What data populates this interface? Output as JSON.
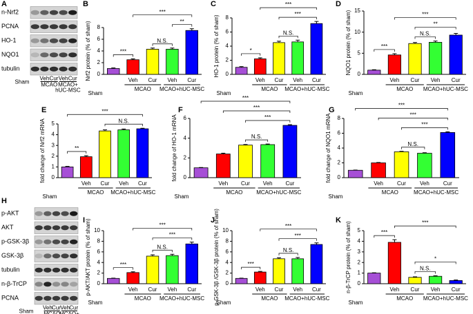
{
  "blots": [
    {
      "panel": "A",
      "rows": [
        "n-Nrf2",
        "PCNA",
        "HO-1",
        "NQO1",
        "tubulin"
      ],
      "lanes": [
        "Sham",
        "Veh",
        "Cur",
        "Veh",
        "Cur"
      ],
      "groups": [
        [
          "MCAO"
        ],
        [
          "MCAO+",
          "hUC-MSC"
        ]
      ]
    },
    {
      "panel": "H",
      "rows": [
        "p-AKT",
        "AKT",
        "p-GSK-3β",
        "GSK-3β",
        "tubulin",
        "n-β-TrCP",
        "PCNA"
      ],
      "lanes": [
        "Sham",
        "Veh",
        "Cur",
        "Veh",
        "Cur"
      ],
      "groups": [
        [
          "MCAO"
        ],
        [
          "MCAO+",
          "hUC-MSC"
        ]
      ]
    }
  ],
  "chart_data": [
    {
      "type": "bar",
      "panel": "B",
      "ylabel": "Nrf2 protein (% of sham)",
      "categories": [
        "Sham",
        "Veh",
        "Cur",
        "Veh",
        "Cur"
      ],
      "groups": [
        "MCAO",
        "MCAO+hUC-MSC"
      ],
      "values": [
        1,
        2.5,
        4.3,
        4.3,
        7.5
      ],
      "errors": [
        0.1,
        0.15,
        0.2,
        0.2,
        0.3
      ],
      "colors": [
        "#a64fd6",
        "#ff0000",
        "#ffff00",
        "#33ff33",
        "#0000ff"
      ],
      "ylim": [
        0,
        8
      ],
      "yticks": [
        0,
        2,
        4,
        6,
        8
      ],
      "brackets": [
        {
          "bars": [
            0,
            1
          ],
          "label": "***"
        },
        {
          "bars": [
            2,
            3
          ],
          "label": "N.S."
        },
        {
          "bars": [
            3,
            4
          ],
          "label": "**"
        },
        {
          "bars": [
            1,
            4
          ],
          "label": "***"
        }
      ]
    },
    {
      "type": "bar",
      "panel": "C",
      "ylabel": "HO-1 protein (% of sham)",
      "categories": [
        "Sham",
        "Veh",
        "Cur",
        "Veh",
        "Cur"
      ],
      "groups": [
        "MCAO",
        "MCAO+hUC-MSC"
      ],
      "values": [
        1,
        2.2,
        4.5,
        4.6,
        7.2
      ],
      "errors": [
        0.1,
        0.15,
        0.2,
        0.25,
        0.3
      ],
      "colors": [
        "#a64fd6",
        "#ff0000",
        "#ffff00",
        "#33ff33",
        "#0000ff"
      ],
      "ylim": [
        0,
        8
      ],
      "yticks": [
        0,
        2,
        4,
        6,
        8
      ],
      "brackets": [
        {
          "bars": [
            0,
            1
          ],
          "label": "*"
        },
        {
          "bars": [
            2,
            3
          ],
          "label": "N.S."
        },
        {
          "bars": [
            2,
            4
          ],
          "label": "***"
        },
        {
          "bars": [
            1,
            4
          ],
          "label": "***"
        }
      ]
    },
    {
      "type": "bar",
      "panel": "D",
      "ylabel": "NQO1 protein (% of sham)",
      "categories": [
        "Sham",
        "Veh",
        "Cur",
        "Veh",
        "Cur"
      ],
      "groups": [
        "MCAO",
        "MCAO+hUC-MSC"
      ],
      "values": [
        1,
        4.6,
        7.3,
        7.6,
        9.3
      ],
      "errors": [
        0.1,
        0.3,
        0.25,
        0.3,
        0.4
      ],
      "colors": [
        "#a64fd6",
        "#ff0000",
        "#ffff00",
        "#33ff33",
        "#0000ff"
      ],
      "ylim": [
        0,
        15
      ],
      "yticks": [
        0,
        5,
        10,
        15
      ],
      "brackets": [
        {
          "bars": [
            0,
            1
          ],
          "label": "***"
        },
        {
          "bars": [
            2,
            3
          ],
          "label": "N.S."
        },
        {
          "bars": [
            2,
            4
          ],
          "label": "**"
        },
        {
          "bars": [
            1,
            4
          ],
          "label": "***"
        }
      ]
    },
    {
      "type": "bar",
      "panel": "E",
      "ylabel": "fold change of Nrf2 mRNA",
      "categories": [
        "Sham",
        "Veh",
        "Cur",
        "Veh",
        "Cur"
      ],
      "groups": [
        "MCAO",
        "MCAO+hUC-MSC"
      ],
      "values": [
        1,
        1.95,
        4.35,
        4.45,
        4.55
      ],
      "errors": [
        0.05,
        0.1,
        0.1,
        0.08,
        0.05
      ],
      "colors": [
        "#a64fd6",
        "#ff0000",
        "#ffff00",
        "#33ff33",
        "#0000ff"
      ],
      "ylim": [
        0,
        5
      ],
      "yticks": [
        0,
        1,
        2,
        3,
        4,
        5
      ],
      "brackets": [
        {
          "bars": [
            0,
            1
          ],
          "label": "**"
        },
        {
          "bars": [
            2,
            4
          ],
          "label": "N.S."
        },
        {
          "bars": [
            0,
            4
          ],
          "label": "***"
        }
      ]
    },
    {
      "type": "bar",
      "panel": "F",
      "ylabel": "fold change of HO-1 mRNA",
      "categories": [
        "Sham",
        "Veh",
        "Cur",
        "Veh",
        "Cur"
      ],
      "groups": [
        "MCAO",
        "MCAO+hUC-MSC"
      ],
      "values": [
        1,
        2.4,
        3.3,
        3.35,
        5.3
      ],
      "errors": [
        0.03,
        0.08,
        0.06,
        0.06,
        0.07
      ],
      "colors": [
        "#a64fd6",
        "#ff0000",
        "#ffff00",
        "#33ff33",
        "#0000ff"
      ],
      "ylim": [
        0,
        6
      ],
      "yticks": [
        0,
        2,
        4,
        6
      ],
      "brackets": [
        {
          "bars": [
            2,
            3
          ],
          "label": "N.S."
        },
        {
          "bars": [
            2,
            4
          ],
          "label": "***"
        },
        {
          "bars": [
            1,
            4
          ],
          "label": "***"
        },
        {
          "bars": [
            0,
            4
          ],
          "label": "***"
        }
      ]
    },
    {
      "type": "bar",
      "panel": "G",
      "ylabel": "fold change of NQO1 mRNA",
      "categories": [
        "Sham",
        "Veh",
        "Cur",
        "Veh",
        "Cur"
      ],
      "groups": [
        "MCAO",
        "MCAO+hUC-MSC"
      ],
      "values": [
        1,
        2.0,
        3.5,
        3.3,
        6.1
      ],
      "errors": [
        0.03,
        0.05,
        0.06,
        0.07,
        0.1
      ],
      "colors": [
        "#a64fd6",
        "#ff0000",
        "#ffff00",
        "#33ff33",
        "#0000ff"
      ],
      "ylim": [
        0,
        8
      ],
      "yticks": [
        0,
        2,
        4,
        6,
        8
      ],
      "brackets": [
        {
          "bars": [
            2,
            3
          ],
          "label": "N.S."
        },
        {
          "bars": [
            2,
            4
          ],
          "label": "***"
        },
        {
          "bars": [
            1,
            4
          ],
          "label": "***"
        },
        {
          "bars": [
            0,
            4
          ],
          "label": "***"
        }
      ]
    },
    {
      "type": "bar",
      "panel": "I",
      "ylabel": "p-AKT/AKT protein (% of sham)",
      "categories": [
        "Sham",
        "Veh",
        "Cur",
        "Veh",
        "Cur"
      ],
      "groups": [
        "MCAO",
        "MCAO+hUC-MSC"
      ],
      "values": [
        1,
        2.1,
        5.2,
        5.3,
        7.5
      ],
      "errors": [
        0.05,
        0.15,
        0.25,
        0.25,
        0.35
      ],
      "colors": [
        "#a64fd6",
        "#ff0000",
        "#ffff00",
        "#33ff33",
        "#0000ff"
      ],
      "ylim": [
        0,
        10
      ],
      "yticks": [
        0,
        2,
        4,
        6,
        8,
        10
      ],
      "brackets": [
        {
          "bars": [
            0,
            1
          ],
          "label": "***"
        },
        {
          "bars": [
            2,
            3
          ],
          "label": "N.S."
        },
        {
          "bars": [
            2,
            4
          ],
          "label": "***"
        },
        {
          "bars": [
            1,
            4
          ],
          "label": "***"
        }
      ]
    },
    {
      "type": "bar",
      "panel": "J",
      "ylabel": "p-GSK-3β /GSK-3β protein (% of sham)",
      "categories": [
        "Sham",
        "Veh",
        "Cur",
        "Veh",
        "Cur"
      ],
      "groups": [
        "MCAO",
        "MCAO+hUC-MSC"
      ],
      "values": [
        1,
        2.2,
        4.7,
        4.7,
        7.4
      ],
      "errors": [
        0.05,
        0.12,
        0.2,
        0.25,
        0.3
      ],
      "colors": [
        "#a64fd6",
        "#ff0000",
        "#ffff00",
        "#33ff33",
        "#0000ff"
      ],
      "ylim": [
        0,
        10
      ],
      "yticks": [
        0,
        2,
        4,
        6,
        8,
        10
      ],
      "brackets": [
        {
          "bars": [
            0,
            1
          ],
          "label": "***"
        },
        {
          "bars": [
            2,
            3
          ],
          "label": "N.S."
        },
        {
          "bars": [
            2,
            4
          ],
          "label": "***"
        },
        {
          "bars": [
            1,
            4
          ],
          "label": "***"
        }
      ]
    },
    {
      "type": "bar",
      "panel": "K",
      "ylabel": "n-β-TrCP protein (% of sham)",
      "categories": [
        "Sham",
        "Veh",
        "Cur",
        "Veh",
        "Cur"
      ],
      "groups": [
        "MCAO",
        "MCAO+hUC-MSC"
      ],
      "values": [
        1,
        3.9,
        0.6,
        0.7,
        0.3
      ],
      "errors": [
        0.03,
        0.25,
        0.05,
        0.05,
        0.05
      ],
      "colors": [
        "#a64fd6",
        "#ff0000",
        "#ffff00",
        "#33ff33",
        "#0000ff"
      ],
      "ylim": [
        0,
        5
      ],
      "yticks": [
        0,
        1,
        2,
        3,
        4,
        5
      ],
      "brackets": [
        {
          "bars": [
            0,
            1
          ],
          "label": "***"
        },
        {
          "bars": [
            2,
            3
          ],
          "label": "N.S."
        },
        {
          "bars": [
            2,
            4
          ],
          "label": "*"
        },
        {
          "bars": [
            1,
            4
          ],
          "label": "***"
        }
      ]
    }
  ]
}
